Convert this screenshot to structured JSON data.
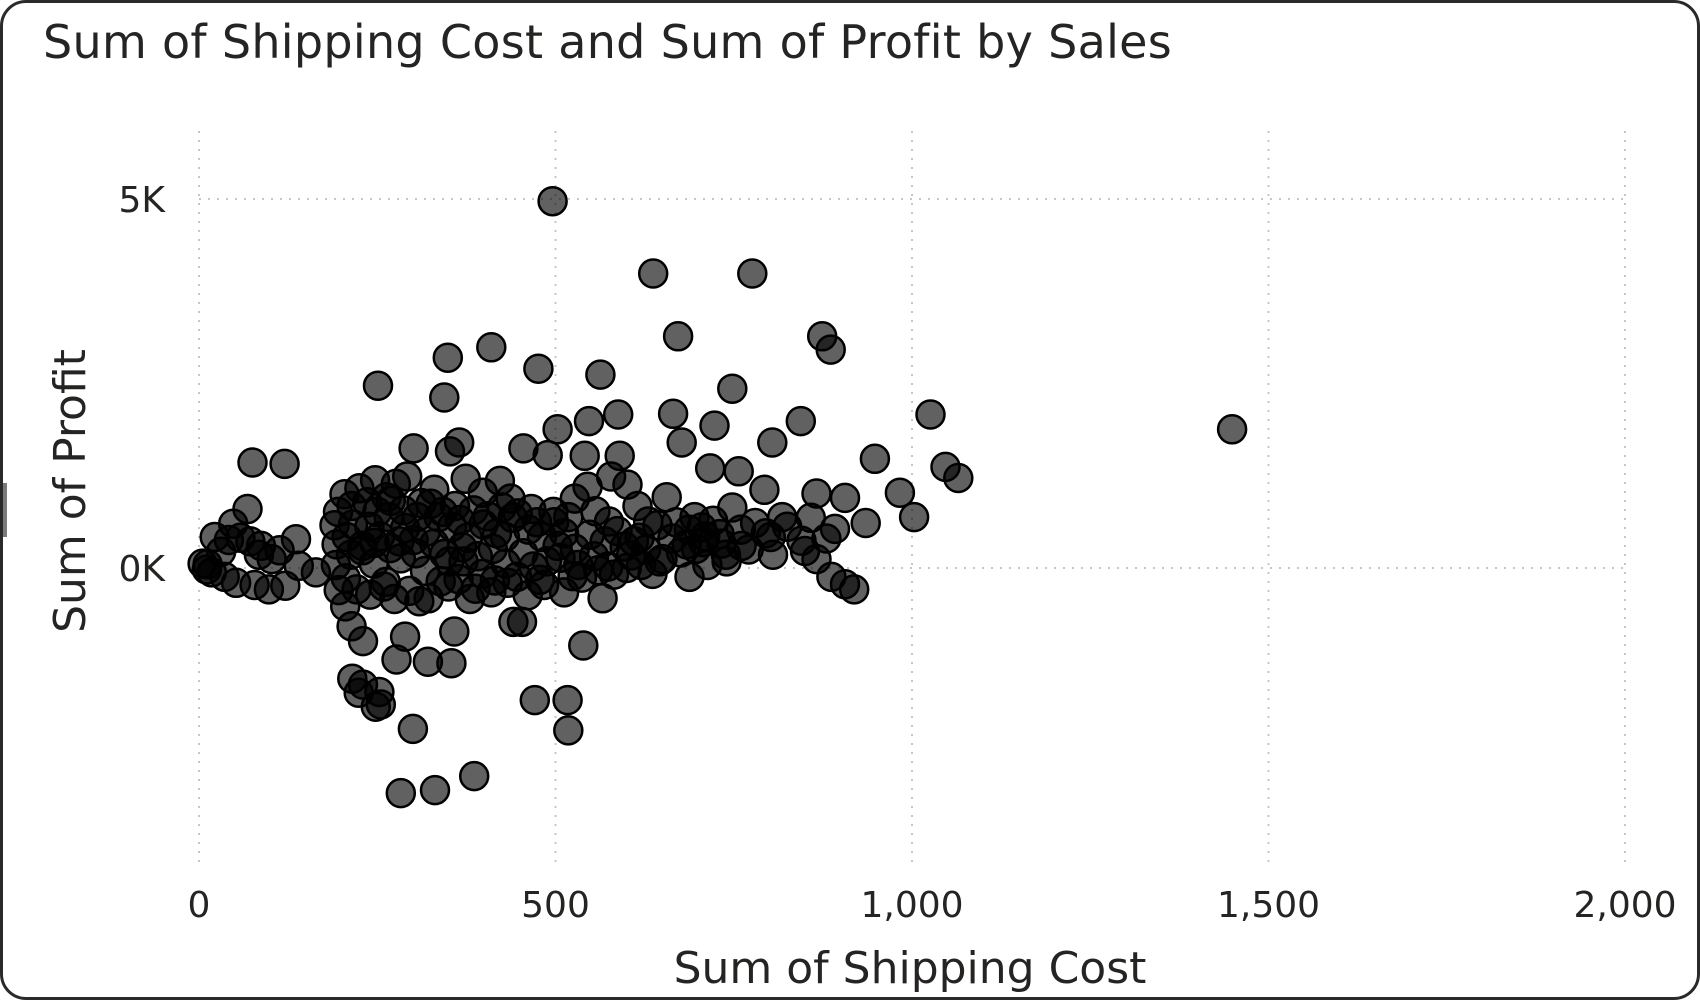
{
  "chart_data": {
    "type": "scatter",
    "title": "Sum of Shipping Cost and Sum of Profit by Sales",
    "xlabel": "Sum of Shipping Cost",
    "ylabel": "Sum of Profit",
    "xlim": [
      0,
      2000
    ],
    "ylim": [
      -4000,
      5900
    ],
    "x_ticks": [
      {
        "value": 0,
        "label": "0"
      },
      {
        "value": 500,
        "label": "500"
      },
      {
        "value": 1000,
        "label": "1,000"
      },
      {
        "value": 1500,
        "label": "1,500"
      },
      {
        "value": 2000,
        "label": "2,000"
      }
    ],
    "y_ticks": [
      {
        "value": 0,
        "label": "0K"
      },
      {
        "value": 5000,
        "label": "5K"
      }
    ],
    "grid": true,
    "legend": "none",
    "marker_color": "#000000",
    "series": [
      {
        "points": [
          [
            496,
            4970
          ],
          [
            637,
            3990
          ],
          [
            776,
            3990
          ],
          [
            672,
            3140
          ],
          [
            874,
            3140
          ],
          [
            886,
            2960
          ],
          [
            410,
            2990
          ],
          [
            349,
            2850
          ],
          [
            476,
            2700
          ],
          [
            563,
            2620
          ],
          [
            251,
            2470
          ],
          [
            344,
            2310
          ],
          [
            748,
            2430
          ],
          [
            1026,
            2080
          ],
          [
            1449,
            1880
          ],
          [
            665,
            2090
          ],
          [
            588,
            2080
          ],
          [
            844,
            1990
          ],
          [
            723,
            1930
          ],
          [
            547,
            1990
          ],
          [
            503,
            1880
          ],
          [
            804,
            1700
          ],
          [
            677,
            1700
          ],
          [
            365,
            1700
          ],
          [
            301,
            1620
          ],
          [
            352,
            1580
          ],
          [
            455,
            1620
          ],
          [
            489,
            1530
          ],
          [
            541,
            1520
          ],
          [
            590,
            1520
          ],
          [
            948,
            1480
          ],
          [
            1047,
            1370
          ],
          [
            1065,
            1220
          ],
          [
            75,
            1430
          ],
          [
            120,
            1410
          ],
          [
            717,
            1350
          ],
          [
            757,
            1310
          ],
          [
            983,
            1020
          ],
          [
            1003,
            690
          ],
          [
            793,
            1060
          ],
          [
            866,
            1010
          ],
          [
            906,
            950
          ],
          [
            748,
            820
          ],
          [
            818,
            690
          ],
          [
            858,
            680
          ],
          [
            935,
            610
          ],
          [
            892,
            530
          ],
          [
            68,
            800
          ],
          [
            48,
            600
          ],
          [
            22,
            420
          ],
          [
            42,
            380
          ],
          [
            58,
            410
          ],
          [
            72,
            360
          ],
          [
            87,
            300
          ],
          [
            136,
            390
          ],
          [
            113,
            240
          ],
          [
            102,
            120
          ],
          [
            84,
            180
          ],
          [
            31,
            220
          ],
          [
            12,
            50
          ],
          [
            18,
            -60
          ],
          [
            36,
            -120
          ],
          [
            52,
            -200
          ],
          [
            78,
            -230
          ],
          [
            98,
            -290
          ],
          [
            121,
            -240
          ],
          [
            5,
            60
          ],
          [
            11,
            -20
          ],
          [
            140,
            30
          ],
          [
            164,
            -60
          ],
          [
            705,
            550
          ],
          [
            730,
            460
          ],
          [
            771,
            250
          ],
          [
            805,
            180
          ],
          [
            850,
            230
          ],
          [
            866,
            120
          ],
          [
            887,
            -120
          ],
          [
            906,
            -220
          ],
          [
            919,
            -290
          ],
          [
            761,
            300
          ],
          [
            740,
            90
          ],
          [
            688,
            -120
          ],
          [
            636,
            -80
          ],
          [
            566,
            -410
          ],
          [
            537,
            -130
          ],
          [
            615,
            840
          ],
          [
            656,
            960
          ],
          [
            630,
            630
          ],
          [
            687,
            520
          ],
          [
            760,
            520
          ],
          [
            707,
            350
          ],
          [
            802,
            420
          ],
          [
            845,
            370
          ],
          [
            610,
            360
          ],
          [
            575,
            630
          ],
          [
            556,
            770
          ],
          [
            527,
            940
          ],
          [
            545,
            1100
          ],
          [
            578,
            1240
          ],
          [
            601,
            1130
          ],
          [
            512,
            470
          ],
          [
            498,
            620
          ],
          [
            466,
            800
          ],
          [
            437,
            940
          ],
          [
            422,
            1180
          ],
          [
            398,
            1020
          ],
          [
            374,
            1210
          ],
          [
            359,
            840
          ],
          [
            330,
            1060
          ],
          [
            312,
            880
          ],
          [
            292,
            1240
          ],
          [
            276,
            1140
          ],
          [
            263,
            960
          ],
          [
            247,
            1190
          ],
          [
            236,
            890
          ],
          [
            225,
            1080
          ],
          [
            214,
            840
          ],
          [
            204,
            1000
          ],
          [
            195,
            760
          ],
          [
            190,
            580
          ],
          [
            193,
            320
          ],
          [
            192,
            40
          ],
          [
            196,
            -300
          ],
          [
            205,
            -520
          ],
          [
            214,
            -790
          ],
          [
            230,
            -990
          ],
          [
            215,
            -1500
          ],
          [
            224,
            -1690
          ],
          [
            253,
            -1680
          ],
          [
            255,
            -1850
          ],
          [
            300,
            -2180
          ],
          [
            277,
            -1240
          ],
          [
            289,
            -930
          ],
          [
            321,
            -1270
          ],
          [
            354,
            -1290
          ],
          [
            358,
            -860
          ],
          [
            453,
            -730
          ],
          [
            441,
            -730
          ],
          [
            539,
            -1050
          ],
          [
            471,
            -1790
          ],
          [
            517,
            -1790
          ],
          [
            518,
            -2200
          ],
          [
            386,
            -2820
          ],
          [
            331,
            -3010
          ],
          [
            283,
            -3050
          ],
          [
            248,
            -1880
          ],
          [
            230,
            -1580
          ],
          [
            322,
            -410
          ],
          [
            350,
            -250
          ],
          [
            380,
            -420
          ],
          [
            410,
            -330
          ],
          [
            433,
            -200
          ],
          [
            461,
            -370
          ],
          [
            484,
            -230
          ],
          [
            512,
            -330
          ],
          [
            524,
            -110
          ],
          [
            469,
            20
          ],
          [
            430,
            60
          ],
          [
            398,
            -80
          ],
          [
            371,
            90
          ],
          [
            344,
            190
          ],
          [
            317,
            -40
          ],
          [
            283,
            130
          ],
          [
            262,
            -190
          ],
          [
            245,
            60
          ],
          [
            229,
            300
          ],
          [
            213,
            180
          ],
          [
            207,
            420
          ],
          [
            216,
            590
          ],
          [
            239,
            560
          ],
          [
            254,
            430
          ],
          [
            266,
            690
          ],
          [
            289,
            540
          ],
          [
            301,
            380
          ],
          [
            318,
            490
          ],
          [
            336,
            690
          ],
          [
            355,
            560
          ],
          [
            377,
            410
          ],
          [
            399,
            590
          ],
          [
            418,
            470
          ],
          [
            440,
            680
          ],
          [
            462,
            520
          ],
          [
            481,
            420
          ],
          [
            503,
            300
          ],
          [
            527,
            260
          ],
          [
            548,
            450
          ],
          [
            569,
            360
          ],
          [
            587,
            500
          ],
          [
            606,
            170
          ],
          [
            627,
            250
          ],
          [
            646,
            90
          ],
          [
            664,
            400
          ],
          [
            684,
            320
          ],
          [
            713,
            40
          ],
          [
            739,
            180
          ],
          [
            250,
            760
          ],
          [
            269,
            910
          ],
          [
            287,
            780
          ],
          [
            306,
            690
          ],
          [
            325,
            870
          ],
          [
            342,
            760
          ],
          [
            366,
            650
          ],
          [
            385,
            780
          ],
          [
            405,
            700
          ],
          [
            425,
            820
          ],
          [
            447,
            740
          ],
          [
            474,
            620
          ],
          [
            497,
            760
          ],
          [
            518,
            690
          ],
          [
            229,
            240
          ],
          [
            246,
            340
          ],
          [
            268,
            270
          ],
          [
            281,
            360
          ],
          [
            304,
            200
          ],
          [
            330,
            330
          ],
          [
            351,
            90
          ],
          [
            369,
            280
          ],
          [
            391,
            160
          ],
          [
            412,
            260
          ],
          [
            429,
            420
          ],
          [
            455,
            200
          ],
          [
            488,
            90
          ],
          [
            507,
            140
          ],
          [
            532,
            40
          ],
          [
            554,
            160
          ],
          [
            574,
            20
          ],
          [
            597,
            290
          ],
          [
            618,
            410
          ],
          [
            643,
            580
          ],
          [
            669,
            620
          ],
          [
            695,
            690
          ],
          [
            721,
            640
          ],
          [
            206,
            -140
          ],
          [
            221,
            -290
          ],
          [
            240,
            -360
          ],
          [
            259,
            -250
          ],
          [
            274,
            -420
          ],
          [
            295,
            -310
          ],
          [
            309,
            -450
          ],
          [
            339,
            -180
          ],
          [
            364,
            -150
          ],
          [
            388,
            -280
          ],
          [
            415,
            -170
          ],
          [
            446,
            -120
          ],
          [
            478,
            -160
          ],
          [
            560,
            -30
          ],
          [
            582,
            -90
          ],
          [
            600,
            0
          ],
          [
            620,
            40
          ],
          [
            650,
            120
          ],
          [
            676,
            210
          ],
          [
            697,
            260
          ],
          [
            710,
            430
          ],
          [
            733,
            330
          ],
          [
            780,
            610
          ],
          [
            795,
            470
          ],
          [
            825,
            560
          ],
          [
            880,
            400
          ]
        ]
      }
    ]
  }
}
